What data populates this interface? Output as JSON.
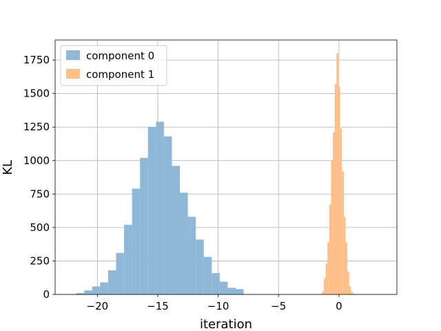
{
  "chart_data": {
    "type": "histogram",
    "title": "",
    "xlabel": "iteration",
    "ylabel": "KL",
    "xlim": [
      -23.5,
      4.8
    ],
    "ylim": [
      0,
      1900
    ],
    "x_ticks": [
      -20,
      -15,
      -10,
      -5,
      0
    ],
    "x_tick_labels": [
      "−20",
      "−15",
      "−10",
      "−5",
      "0"
    ],
    "y_ticks": [
      0,
      250,
      500,
      750,
      1000,
      1250,
      1500,
      1750
    ],
    "y_tick_labels": [
      "0",
      "250",
      "500",
      "750",
      "1000",
      "1250",
      "1500",
      "1750"
    ],
    "grid": true,
    "legend_position": "top-left",
    "series": [
      {
        "name": "component 0",
        "color": "#8fb8d8",
        "bin_edges": [
          -21.75,
          -21.09,
          -20.43,
          -19.77,
          -19.11,
          -18.45,
          -17.79,
          -17.13,
          -16.47,
          -15.81,
          -15.15,
          -14.49,
          -13.83,
          -13.17,
          -12.51,
          -11.85,
          -11.19,
          -10.53,
          -9.87,
          -9.21,
          -8.55,
          -7.89
        ],
        "counts": [
          10,
          30,
          60,
          90,
          180,
          310,
          520,
          790,
          1020,
          1250,
          1290,
          1180,
          960,
          760,
          580,
          410,
          280,
          160,
          95,
          50,
          40
        ]
      },
      {
        "name": "component 1",
        "color": "#ffbf86",
        "bin_edges": [
          -1.55,
          -1.4,
          -1.25,
          -1.1,
          -0.95,
          -0.8,
          -0.65,
          -0.5,
          -0.35,
          -0.2,
          -0.05,
          0.1,
          0.25,
          0.4,
          0.55,
          0.7,
          0.85,
          1.0,
          1.15,
          1.3,
          1.45
        ],
        "counts": [
          5,
          20,
          120,
          230,
          390,
          670,
          1000,
          1210,
          1570,
          1800,
          1550,
          1240,
          920,
          580,
          390,
          170,
          60,
          20,
          8,
          3
        ]
      }
    ]
  }
}
